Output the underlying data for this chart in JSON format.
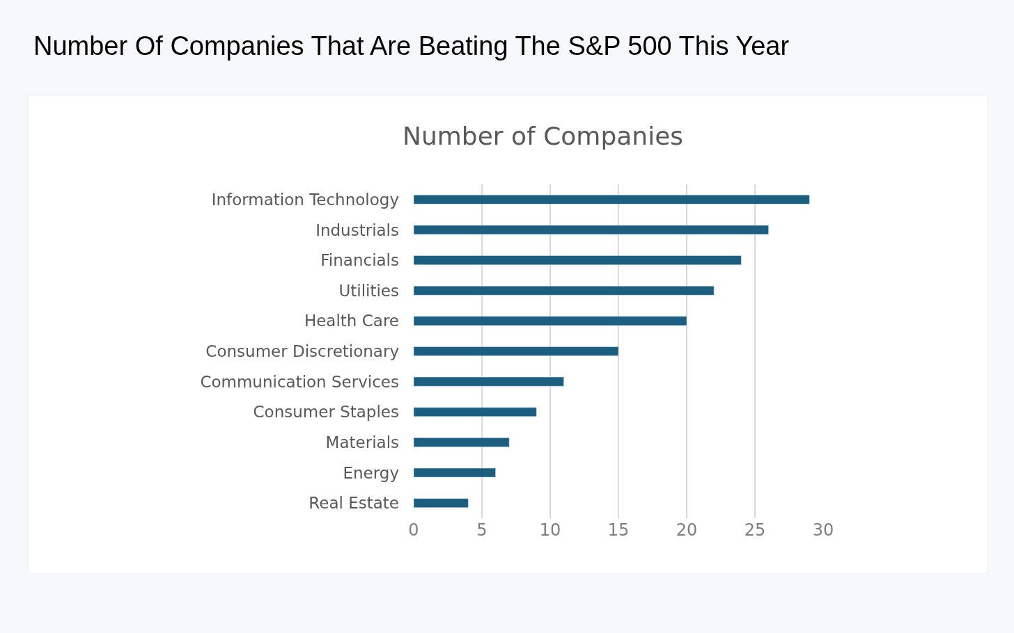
{
  "chart_data": {
    "type": "bar",
    "orientation": "horizontal",
    "title": "Number Of Companies That Are Beating The S&P 500 This Year",
    "subtitle": "Number of Companies",
    "categories": [
      "Information Technology",
      "Industrials",
      "Financials",
      "Utilities",
      "Health Care",
      "Consumer Discretionary",
      "Communication Services",
      "Consumer Staples",
      "Materials",
      "Energy",
      "Real Estate"
    ],
    "values": [
      29,
      26,
      24,
      22,
      20,
      15,
      11,
      9,
      7,
      6,
      4
    ],
    "color": "#1b5e80",
    "xlim": [
      0,
      30
    ],
    "xticks": [
      0,
      5,
      10,
      15,
      20,
      25,
      30
    ],
    "grid": "x"
  }
}
